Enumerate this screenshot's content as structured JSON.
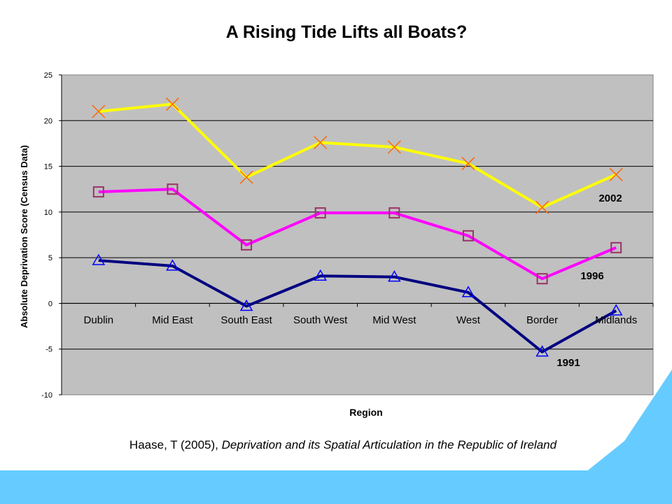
{
  "slide": {
    "title": "A Rising Tide Lifts all Boats?",
    "citation_prefix": "Haase, T (2005), ",
    "citation_title": "Deprivation and its Spatial Articulation in the Republic of Ireland"
  },
  "colors": {
    "plot_background": "#C0C0C0",
    "accent_blue": "#66CCFF"
  },
  "chart_data": {
    "type": "line",
    "title": "",
    "xlabel": "Region",
    "ylabel": "Absolute Deprivation Score (Census Data)",
    "ylim": [
      -10,
      25
    ],
    "yticks": [
      -10,
      -5,
      0,
      5,
      10,
      15,
      20,
      25
    ],
    "grid": true,
    "categories": [
      "Dublin",
      "Mid East",
      "South East",
      "South West",
      "Mid West",
      "West",
      "Border",
      "Midlands"
    ],
    "series": [
      {
        "name": "2002",
        "color": "#FFFF00",
        "marker": "x",
        "marker_color": "#FF6600",
        "values": [
          21.0,
          21.8,
          13.8,
          17.6,
          17.1,
          15.3,
          10.5,
          14.1
        ]
      },
      {
        "name": "1996",
        "color": "#FF00FF",
        "marker": "square",
        "marker_color": "#993366",
        "values": [
          12.2,
          12.5,
          6.4,
          9.9,
          9.9,
          7.4,
          2.7,
          6.1
        ]
      },
      {
        "name": "1991",
        "color": "#000080",
        "marker": "triangle",
        "marker_color": "#0000FF",
        "values": [
          4.7,
          4.1,
          -0.3,
          3.0,
          2.9,
          1.2,
          -5.3,
          -0.8
        ]
      }
    ]
  }
}
